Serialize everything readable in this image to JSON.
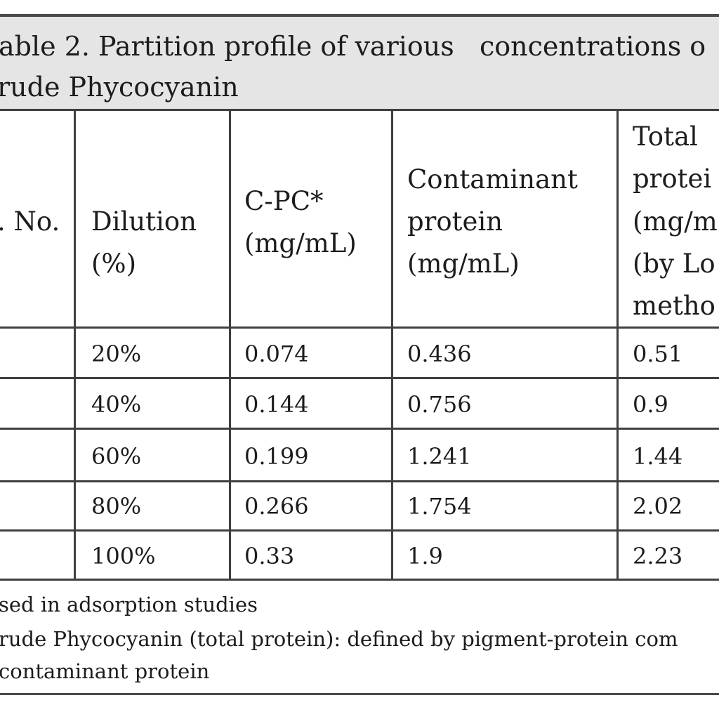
{
  "table": {
    "title_line1": "able 2. Partition profile of various   concentrations o",
    "title_line2": "rude Phycocyanin",
    "headers": {
      "sno": ". No.",
      "dilution_line1": "Dilution",
      "dilution_line2": "(%)",
      "cpc_line1": "C-PC*",
      "cpc_line2": "(mg/mL)",
      "contaminant_line1": "Contaminant",
      "contaminant_line2": "protein",
      "contaminant_line3": "(mg/mL)",
      "total_line1": "Total",
      "total_line2": "protei",
      "total_line3": "(mg/m",
      "total_line4": "(by Lo",
      "total_line5": "metho"
    },
    "rows": [
      {
        "dilution": "20%",
        "cpc": "0.074",
        "contaminant": "0.436",
        "total": "0.51"
      },
      {
        "dilution": "40%",
        "cpc": "0.144",
        "contaminant": "0.756",
        "total": "0.9"
      },
      {
        "dilution": "60%",
        "cpc": "0.199",
        "contaminant": "1.241",
        "total": "1.44"
      },
      {
        "dilution": "80%",
        "cpc": "0.266",
        "contaminant": "1.754",
        "total": "2.02"
      },
      {
        "dilution": "100%",
        "cpc": "0.33",
        "contaminant": "1.9",
        "total": "2.23"
      }
    ],
    "footnotes": {
      "line1": "sed in adsorption studies",
      "line2": "rude Phycocyanin (total protein): defined by pigment-protein com",
      "line3": "contaminant protein"
    }
  },
  "colors": {
    "title_band": "#e5e5e5",
    "rule": "#4a4a4a",
    "text": "#1c1c1c"
  }
}
